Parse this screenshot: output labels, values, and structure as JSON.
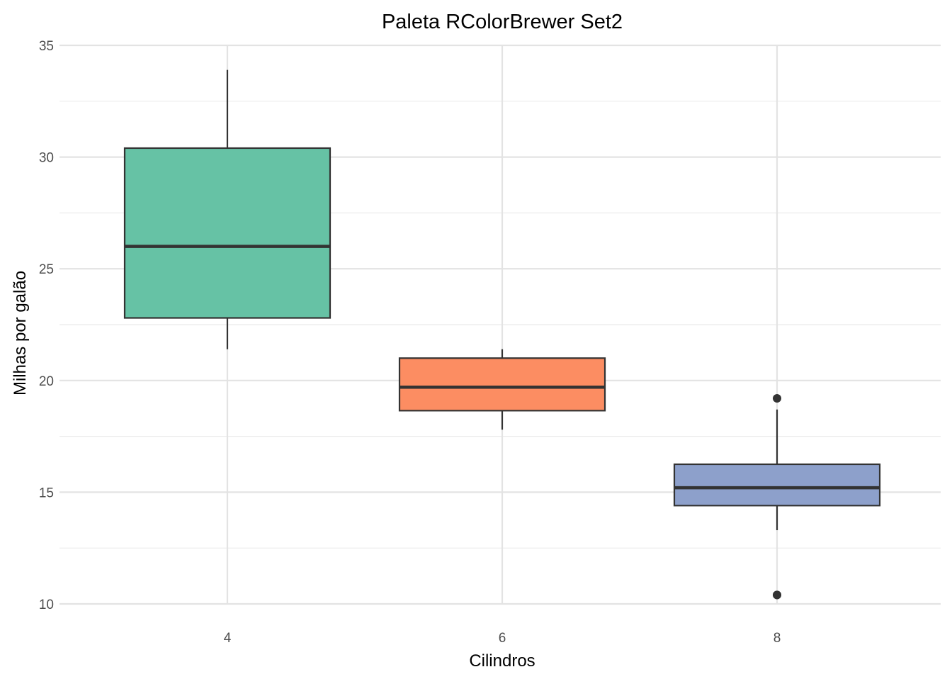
{
  "chart_data": {
    "type": "boxplot",
    "title": "Paleta RColorBrewer Set2",
    "xlabel": "Cilindros",
    "ylabel": "Milhas por galão",
    "ylim": [
      10,
      35
    ],
    "yticks": [
      10,
      15,
      20,
      25,
      30,
      35
    ],
    "ytick_labels": [
      "10",
      "15",
      "20",
      "25",
      "30",
      "35"
    ],
    "grid": true,
    "legend": "none",
    "categories": [
      "4",
      "6",
      "8"
    ],
    "boxes": [
      {
        "category": "4",
        "whisker_low": 21.4,
        "q1": 22.8,
        "median": 26.0,
        "q3": 30.4,
        "whisker_high": 33.9,
        "outliers": [],
        "color": "#66C2A5"
      },
      {
        "category": "6",
        "whisker_low": 17.8,
        "q1": 18.65,
        "median": 19.7,
        "q3": 21.0,
        "whisker_high": 21.4,
        "outliers": [],
        "color": "#FC8D62"
      },
      {
        "category": "8",
        "whisker_low": 13.3,
        "q1": 14.4,
        "median": 15.2,
        "q3": 16.25,
        "whisker_high": 18.7,
        "outliers": [
          10.4,
          10.4,
          19.2
        ],
        "color": "#8DA0CB"
      }
    ]
  }
}
